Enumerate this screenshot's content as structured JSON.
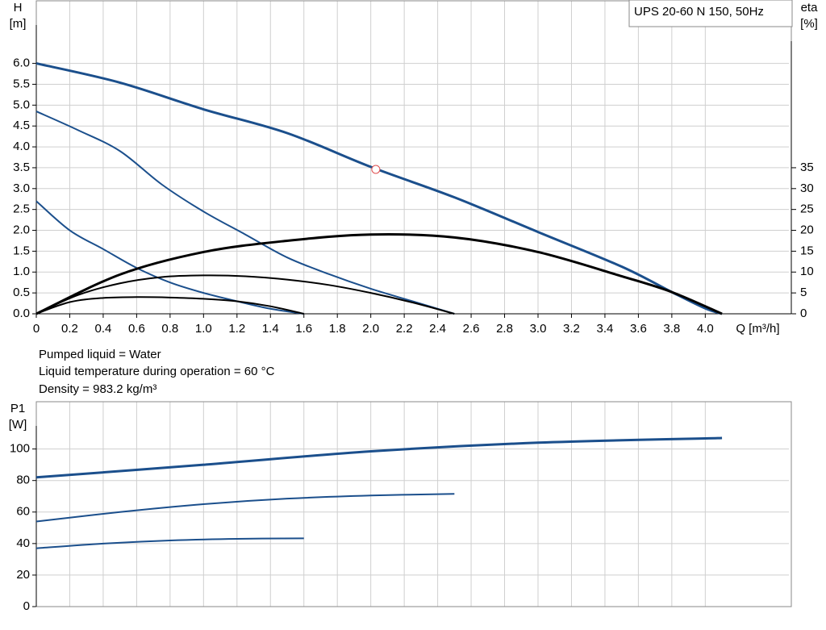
{
  "chart_data": [
    {
      "type": "line",
      "title": "UPS 20-60 N 150, 50Hz",
      "ylabel": "H",
      "yunit": "[m]",
      "y2label": "eta",
      "y2unit": "[%]",
      "xlabel": "Q [m³/h]",
      "xlim": [
        0,
        4.5
      ],
      "ylim": [
        0,
        7.5
      ],
      "y2lim": [
        0,
        75
      ],
      "grid": true,
      "xticks": [
        0,
        0.2,
        0.4,
        0.6,
        0.8,
        {
          "value": 1,
          "label": "1.0"
        },
        1.2,
        1.4,
        1.6,
        1.8,
        {
          "value": 2,
          "label": "2.0"
        },
        2.2,
        2.4,
        2.6,
        2.8,
        {
          "value": 3,
          "label": "3.0"
        },
        3.2,
        3.4,
        3.6,
        3.8,
        {
          "value": 4,
          "label": "4.0"
        }
      ],
      "yticks": [
        {
          "value": 0,
          "label": "0.0"
        },
        0.5,
        {
          "value": 1,
          "label": "1.0"
        },
        1.5,
        {
          "value": 2,
          "label": "2.0"
        },
        2.5,
        {
          "value": 3,
          "label": "3.0"
        },
        3.5,
        {
          "value": 4,
          "label": "4.0"
        },
        4.5,
        {
          "value": 5,
          "label": "5.0"
        },
        5.5,
        {
          "value": 6,
          "label": "6.0"
        }
      ],
      "y2ticks": [
        0,
        5,
        10,
        15,
        20,
        25,
        30,
        35
      ],
      "series": [
        {
          "color": "#1b4f8c",
          "line_width": 3,
          "x": [
            0,
            0.5,
            1,
            1.5,
            2,
            2.5,
            3,
            3.5,
            3.8,
            4,
            4.1
          ],
          "values": [
            6,
            5.54,
            4.9,
            4.33,
            3.52,
            2.79,
            1.96,
            1.13,
            0.52,
            0.13,
            0
          ]
        },
        {
          "color": "#1b4f8c",
          "line_width": 2,
          "x": [
            0,
            0.25,
            0.5,
            0.75,
            1,
            1.25,
            1.5,
            1.75,
            2,
            2.25,
            2.5
          ],
          "values": [
            4.85,
            4.4,
            3.9,
            3.1,
            2.45,
            1.9,
            1.35,
            0.95,
            0.6,
            0.3,
            0
          ]
        },
        {
          "color": "#1b4f8c",
          "line_width": 2,
          "x": [
            0,
            0.2,
            0.4,
            0.6,
            0.8,
            1,
            1.2,
            1.4,
            1.6
          ],
          "values": [
            2.7,
            2.0,
            1.55,
            1.1,
            0.75,
            0.5,
            0.3,
            0.12,
            0
          ]
        },
        {
          "color": "#000000",
          "line_width": 3,
          "axis": "y2",
          "x": [
            0,
            0.5,
            1,
            1.5,
            2,
            2.5,
            3,
            3.5,
            3.8,
            4.1
          ],
          "values": [
            0,
            9.4,
            14.8,
            17.5,
            19,
            18.3,
            14.8,
            9,
            5.2,
            0
          ]
        },
        {
          "color": "#000000",
          "line_width": 2,
          "axis": "y2",
          "x": [
            0,
            0.25,
            0.5,
            0.75,
            1,
            1.25,
            1.5,
            1.75,
            2,
            2.25,
            2.5
          ],
          "values": [
            0,
            4.5,
            7.3,
            8.8,
            9.2,
            9,
            8.2,
            6.9,
            5,
            2.7,
            0
          ]
        },
        {
          "color": "#000000",
          "line_width": 2,
          "axis": "y2",
          "x": [
            0,
            0.2,
            0.4,
            0.6,
            0.8,
            1,
            1.2,
            1.4,
            1.6
          ],
          "values": [
            0,
            2.8,
            3.8,
            4,
            3.9,
            3.6,
            3,
            1.8,
            0
          ]
        }
      ],
      "point": {
        "x": 2.03,
        "y": 3.46,
        "color": "#e05050"
      }
    },
    {
      "type": "line",
      "ylabel": "P1",
      "yunit": "[W]",
      "xlim": [
        0,
        4.5
      ],
      "ylim": [
        0,
        130
      ],
      "grid": true,
      "yticks": [
        0,
        20,
        40,
        60,
        80,
        100
      ],
      "series": [
        {
          "color": "#1b4f8c",
          "line_width": 3,
          "x": [
            0,
            1,
            2,
            3,
            4.1
          ],
          "values": [
            82,
            90,
            98.5,
            104,
            107
          ]
        },
        {
          "color": "#1b4f8c",
          "line_width": 2,
          "x": [
            0,
            0.5,
            1,
            1.5,
            2,
            2.5
          ],
          "values": [
            54,
            60,
            65,
            68.5,
            70.5,
            71.5
          ]
        },
        {
          "color": "#1b4f8c",
          "line_width": 2,
          "x": [
            0,
            0.4,
            0.8,
            1.2,
            1.6
          ],
          "values": [
            37,
            40,
            42,
            43,
            43.3
          ]
        }
      ]
    }
  ],
  "info_lines": [
    "Pumped liquid = Water",
    "Liquid temperature during operation = 60 °C",
    "Density = 983.2 kg/m³"
  ]
}
